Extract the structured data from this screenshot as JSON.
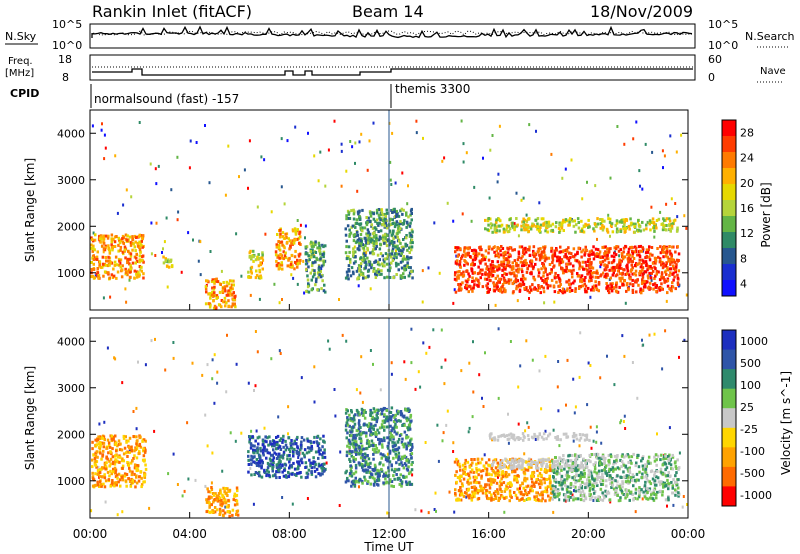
{
  "header": {
    "title": "Rankin Inlet (fitACF)",
    "beam": "Beam 14",
    "date": "18/Nov/2009"
  },
  "noise_panel": {
    "left_label": "N.Sky",
    "right_label": "N.Search",
    "left_ticks": [
      "10^5",
      "10^0"
    ],
    "right_ticks": [
      "10^5",
      "10^0"
    ]
  },
  "freq_panel": {
    "left_label_1": "Freq.",
    "left_label_2": "[MHz]",
    "right_label": "Nave",
    "left_ticks": [
      "18",
      "8"
    ],
    "right_ticks": [
      "60",
      "0"
    ]
  },
  "cpid": {
    "label": "CPID",
    "mode_1": "normalsound (fast) -157",
    "mode_2": "themis 3300"
  },
  "chart_data": [
    {
      "type": "heatmap",
      "name": "power",
      "ylabel": "Slant Range [km]",
      "xlim": [
        0,
        24
      ],
      "ylim": [
        200,
        4500
      ],
      "y_ticks": [
        "1000",
        "2000",
        "3000",
        "4000"
      ],
      "colorbar": {
        "label": "Power [dB]",
        "ticks": [
          "28",
          "24",
          "20",
          "16",
          "12",
          "8",
          "4"
        ],
        "colors": [
          "#ff0000",
          "#ff3c00",
          "#ff7a00",
          "#ffb000",
          "#e6d800",
          "#b5d43a",
          "#63b545",
          "#2f8a66",
          "#27578f",
          "#1a2fd0",
          "#1010ff"
        ]
      },
      "echo_regions": [
        {
          "t": [
            0.0,
            2.1
          ],
          "r": [
            900,
            1850
          ],
          "level": "medium-high"
        },
        {
          "t": [
            2.9,
            3.3
          ],
          "r": [
            1150,
            1450
          ],
          "level": "medium"
        },
        {
          "t": [
            4.6,
            5.8
          ],
          "r": [
            250,
            900
          ],
          "level": "medium-high"
        },
        {
          "t": [
            6.3,
            6.9
          ],
          "r": [
            900,
            1500
          ],
          "level": "medium"
        },
        {
          "t": [
            7.4,
            8.4
          ],
          "r": [
            1100,
            2000
          ],
          "level": "medium-high"
        },
        {
          "t": [
            8.6,
            9.4
          ],
          "r": [
            600,
            1700
          ],
          "level": "low-medium"
        },
        {
          "t": [
            10.2,
            12.9
          ],
          "r": [
            900,
            2400
          ],
          "level": "low-medium"
        },
        {
          "t": [
            14.6,
            23.6
          ],
          "r": [
            600,
            1600
          ],
          "level": "high"
        },
        {
          "t": [
            15.8,
            23.6
          ],
          "r": [
            1900,
            2200
          ],
          "level": "medium"
        }
      ]
    },
    {
      "type": "heatmap",
      "name": "velocity",
      "xlabel": "Time UT",
      "ylabel": "Slant Range [km]",
      "xlim": [
        0,
        24
      ],
      "ylim": [
        200,
        4500
      ],
      "x_ticks": [
        "00:00",
        "04:00",
        "08:00",
        "12:00",
        "16:00",
        "20:00",
        "00:00"
      ],
      "y_ticks": [
        "1000",
        "2000",
        "3000",
        "4000"
      ],
      "colorbar": {
        "label": "Velocity [m s^-1]",
        "ticks": [
          "1000",
          "500",
          "100",
          "25",
          "-25",
          "-100",
          "-500",
          "-1000"
        ],
        "colors": [
          "#1d2fbf",
          "#2f55a8",
          "#2f8a6c",
          "#6fc44a",
          "#c8c8c8",
          "#ffd600",
          "#ffa200",
          "#ff6a00",
          "#ff0000"
        ]
      },
      "echo_regions": [
        {
          "t": [
            0.0,
            2.2
          ],
          "r": [
            900,
            2000
          ],
          "level": "negative-medium"
        },
        {
          "t": [
            4.6,
            5.9
          ],
          "r": [
            250,
            900
          ],
          "level": "negative-medium"
        },
        {
          "t": [
            6.3,
            9.4
          ],
          "r": [
            1100,
            2000
          ],
          "level": "positive-high"
        },
        {
          "t": [
            10.2,
            12.9
          ],
          "r": [
            900,
            2600
          ],
          "level": "positive-medium"
        },
        {
          "t": [
            14.6,
            18.5
          ],
          "r": [
            600,
            1500
          ],
          "level": "negative-medium"
        },
        {
          "t": [
            18.5,
            23.6
          ],
          "r": [
            600,
            1600
          ],
          "level": "positive-low"
        },
        {
          "t": [
            16.0,
            20.0
          ],
          "r": [
            1300,
            1500
          ],
          "level": "near-zero"
        },
        {
          "t": [
            16.0,
            20.0
          ],
          "r": [
            1900,
            2050
          ],
          "level": "near-zero"
        }
      ]
    }
  ]
}
